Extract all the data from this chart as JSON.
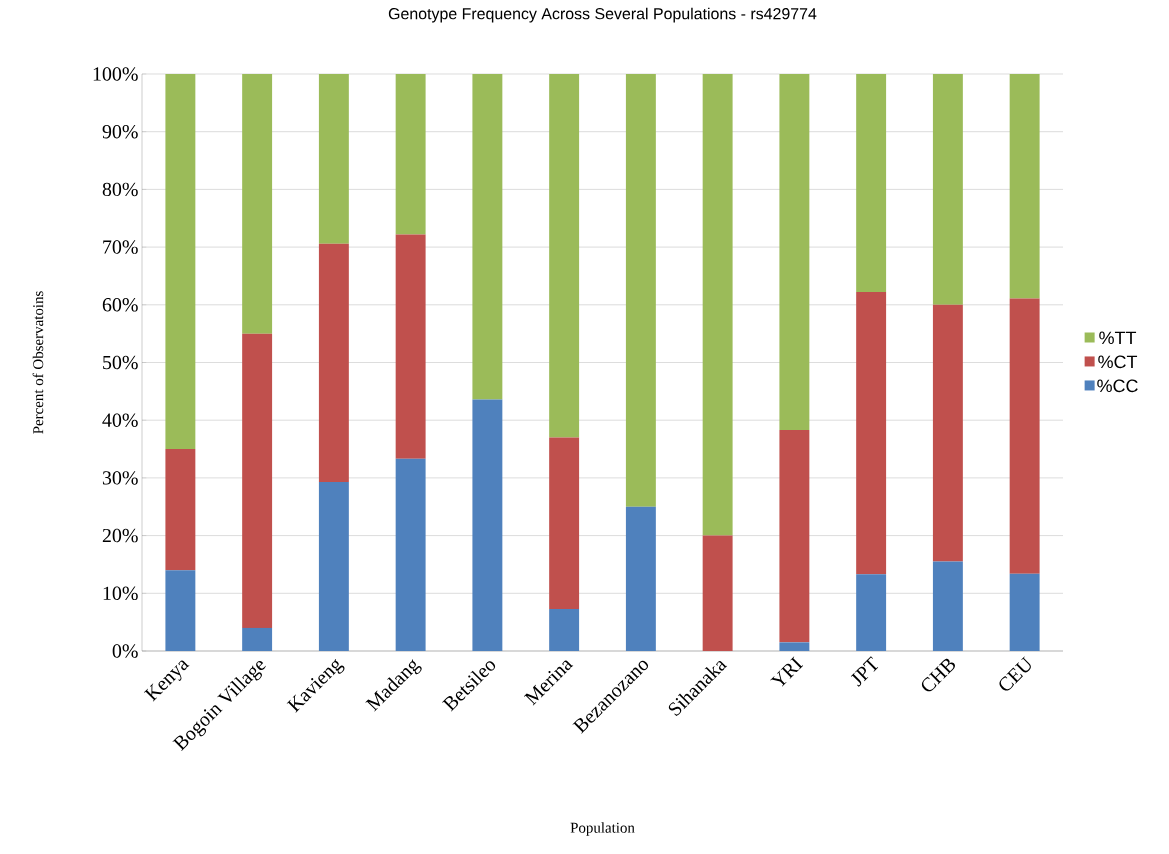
{
  "chart_data": {
    "type": "bar",
    "stacked": true,
    "title": "Genotype Frequency Across Several Populations - rs429774",
    "xlabel": "Population",
    "ylabel": "Percent of Observatoins",
    "categories": [
      "Kenya",
      "Bogoin Village",
      "Kavieng",
      "Madang",
      "Betsileo",
      "Merina",
      "Bezanozano",
      "Sihanaka",
      "YRI",
      "JPT",
      "CHB",
      "CEU"
    ],
    "series": [
      {
        "name": "%CC",
        "color": "#4f81bd",
        "values": [
          14,
          4,
          29.3,
          33.3,
          43.6,
          7.3,
          25,
          0,
          1.5,
          13.3,
          15.5,
          13.4
        ]
      },
      {
        "name": "%CT",
        "color": "#c0504d",
        "values": [
          21,
          51,
          41.3,
          38.9,
          0,
          29.7,
          0,
          20,
          36.8,
          48.9,
          44.5,
          47.7
        ]
      },
      {
        "name": "%TT",
        "color": "#9bbb59",
        "values": [
          65,
          45,
          29.4,
          27.8,
          56.4,
          63,
          75,
          80,
          61.7,
          37.8,
          40,
          38.9
        ]
      }
    ],
    "ylim": [
      0,
      100
    ],
    "yticks": [
      {
        "value": 0,
        "label": "0%"
      },
      {
        "value": 10,
        "label": "10%"
      },
      {
        "value": 20,
        "label": "20%"
      },
      {
        "value": 30,
        "label": "30%"
      },
      {
        "value": 40,
        "label": "40%"
      },
      {
        "value": 50,
        "label": "50%"
      },
      {
        "value": 60,
        "label": "60%"
      },
      {
        "value": 70,
        "label": "70%"
      },
      {
        "value": 80,
        "label": "80%"
      },
      {
        "value": 90,
        "label": "90%"
      },
      {
        "value": 100,
        "label": "100%"
      }
    ],
    "grid": "y",
    "legend": "right"
  }
}
